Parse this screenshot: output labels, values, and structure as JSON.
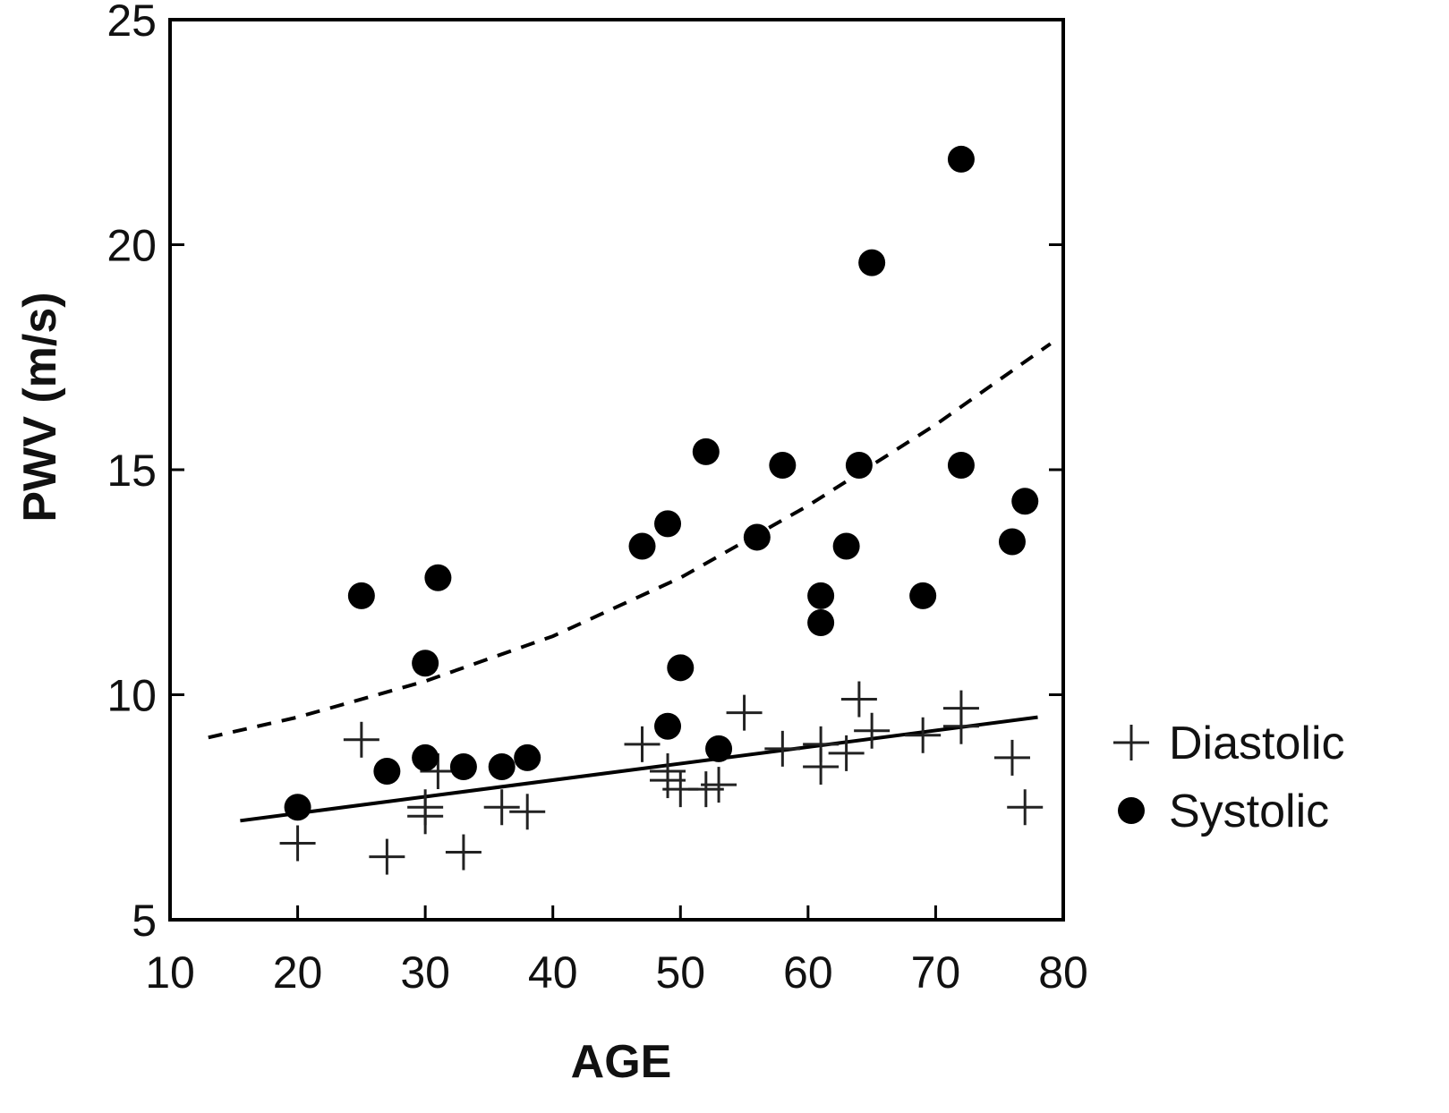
{
  "chart_data": {
    "type": "scatter",
    "title": "",
    "xlabel": "AGE",
    "ylabel": "PWV (m/s)",
    "xlim": [
      10,
      80
    ],
    "ylim": [
      5,
      25
    ],
    "x_ticks": [
      10,
      20,
      30,
      40,
      50,
      60,
      70,
      80
    ],
    "y_ticks": [
      5,
      10,
      15,
      20,
      25
    ],
    "grid": false,
    "legend_position": "right",
    "series": [
      {
        "name": "Diastolic",
        "marker": "plus",
        "color": "#222222",
        "points": [
          {
            "x": 20,
            "y": 6.7
          },
          {
            "x": 25,
            "y": 9.0
          },
          {
            "x": 27,
            "y": 6.4
          },
          {
            "x": 30,
            "y": 7.5
          },
          {
            "x": 30,
            "y": 7.3
          },
          {
            "x": 31,
            "y": 8.3
          },
          {
            "x": 33,
            "y": 6.5
          },
          {
            "x": 36,
            "y": 7.5
          },
          {
            "x": 38,
            "y": 7.4
          },
          {
            "x": 47,
            "y": 8.9
          },
          {
            "x": 49,
            "y": 8.3
          },
          {
            "x": 49,
            "y": 8.1
          },
          {
            "x": 50,
            "y": 7.9
          },
          {
            "x": 52,
            "y": 7.9
          },
          {
            "x": 53,
            "y": 8.0
          },
          {
            "x": 55,
            "y": 9.6
          },
          {
            "x": 58,
            "y": 8.8
          },
          {
            "x": 61,
            "y": 8.9
          },
          {
            "x": 61,
            "y": 8.4
          },
          {
            "x": 63,
            "y": 8.7
          },
          {
            "x": 64,
            "y": 9.9
          },
          {
            "x": 65,
            "y": 9.2
          },
          {
            "x": 69,
            "y": 9.1
          },
          {
            "x": 72,
            "y": 9.7
          },
          {
            "x": 72,
            "y": 9.3
          },
          {
            "x": 76,
            "y": 8.6
          },
          {
            "x": 77,
            "y": 7.5
          }
        ]
      },
      {
        "name": "Systolic",
        "marker": "circle",
        "color": "#000000",
        "points": [
          {
            "x": 20,
            "y": 7.5
          },
          {
            "x": 25,
            "y": 12.2
          },
          {
            "x": 27,
            "y": 8.3
          },
          {
            "x": 30,
            "y": 10.7
          },
          {
            "x": 30,
            "y": 8.6
          },
          {
            "x": 31,
            "y": 12.6
          },
          {
            "x": 33,
            "y": 8.4
          },
          {
            "x": 36,
            "y": 8.4
          },
          {
            "x": 38,
            "y": 8.6
          },
          {
            "x": 47,
            "y": 13.3
          },
          {
            "x": 49,
            "y": 13.8
          },
          {
            "x": 49,
            "y": 9.3
          },
          {
            "x": 50,
            "y": 10.6
          },
          {
            "x": 52,
            "y": 15.4
          },
          {
            "x": 53,
            "y": 8.8
          },
          {
            "x": 56,
            "y": 13.5
          },
          {
            "x": 58,
            "y": 15.1
          },
          {
            "x": 61,
            "y": 12.2
          },
          {
            "x": 61,
            "y": 11.6
          },
          {
            "x": 63,
            "y": 13.3
          },
          {
            "x": 64,
            "y": 15.1
          },
          {
            "x": 65,
            "y": 19.6
          },
          {
            "x": 69,
            "y": 12.2
          },
          {
            "x": 72,
            "y": 21.9
          },
          {
            "x": 72,
            "y": 15.1
          },
          {
            "x": 76,
            "y": 13.4
          },
          {
            "x": 77,
            "y": 14.3
          }
        ]
      }
    ],
    "fit_lines": [
      {
        "series": "Diastolic",
        "style": "solid",
        "color": "#000000",
        "points": [
          {
            "x": 15.5,
            "y": 7.2
          },
          {
            "x": 78,
            "y": 9.5
          }
        ]
      },
      {
        "series": "Systolic",
        "style": "dashed",
        "color": "#000000",
        "points": [
          {
            "x": 13,
            "y": 9.05
          },
          {
            "x": 20,
            "y": 9.5
          },
          {
            "x": 30,
            "y": 10.3
          },
          {
            "x": 40,
            "y": 11.3
          },
          {
            "x": 50,
            "y": 12.6
          },
          {
            "x": 60,
            "y": 14.2
          },
          {
            "x": 70,
            "y": 16.0
          },
          {
            "x": 79,
            "y": 17.8
          }
        ]
      }
    ]
  }
}
